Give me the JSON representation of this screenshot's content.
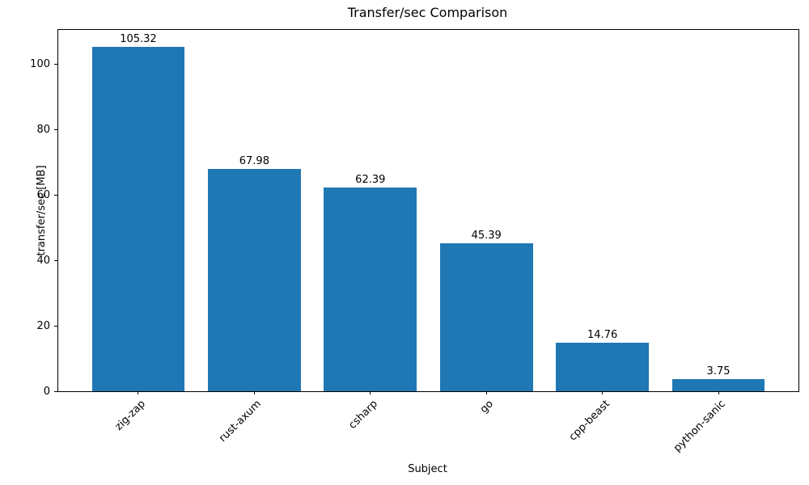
{
  "chart_data": {
    "type": "bar",
    "title": "Transfer/sec Comparison",
    "xlabel": "Subject",
    "ylabel": "transfer/sec [MB]",
    "categories": [
      "zig-zap",
      "rust-axum",
      "csharp",
      "go",
      "cpp-beast",
      "python-sanic"
    ],
    "values": [
      105.32,
      67.98,
      62.39,
      45.39,
      14.76,
      3.75
    ],
    "value_labels": [
      "105.32",
      "67.98",
      "62.39",
      "45.39",
      "14.76",
      "3.75"
    ],
    "yticks": [
      0,
      20,
      40,
      60,
      80,
      100
    ],
    "ylim": [
      0,
      110.59
    ],
    "xlim": [
      -0.69,
      5.69
    ],
    "bar_width_units": 0.8,
    "bar_color": "#1f77b4",
    "spine_color": "#000000",
    "text_color": "#000000",
    "grid": false,
    "legend_position": "none",
    "xtick_rotation_deg": 45
  }
}
